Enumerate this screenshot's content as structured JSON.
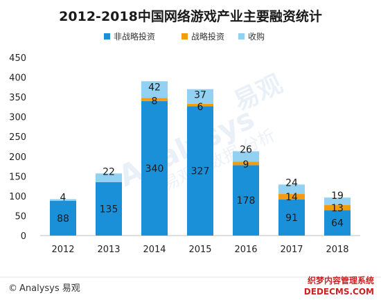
{
  "chart_data": {
    "type": "bar",
    "stacked": true,
    "title": "2012-2018中国网络游戏产业主要融资统计",
    "categories": [
      "2012",
      "2013",
      "2014",
      "2015",
      "2016",
      "2017",
      "2018"
    ],
    "series": [
      {
        "name": "非战略投资",
        "values": [
          88,
          135,
          340,
          327,
          178,
          91,
          64
        ],
        "color": "#1a90d9",
        "label_color": "#1a1a1a"
      },
      {
        "name": "战略投资",
        "values": [
          0,
          0,
          8,
          6,
          9,
          14,
          13
        ],
        "color": "#f39c12",
        "label_color": "#1a1a1a"
      },
      {
        "name": "收购",
        "values": [
          4,
          22,
          42,
          37,
          26,
          24,
          19
        ],
        "color": "#92d1f2",
        "label_color": "#1a1a1a"
      }
    ],
    "ylim": [
      0,
      450
    ],
    "yticks": [
      0,
      50,
      100,
      150,
      200,
      250,
      300,
      350,
      400,
      450
    ],
    "grid": false,
    "legend_position": "top-center"
  },
  "footer": {
    "copyright_symbol": "©",
    "brand": "Analysys 易观"
  },
  "watermark": {
    "brand_en": "Analysys",
    "brand_cn": "易观",
    "tagline": "易观 | 数据 分析",
    "site_cn": "织梦内容管理系统",
    "site_en": "DEDECMS.COM"
  }
}
